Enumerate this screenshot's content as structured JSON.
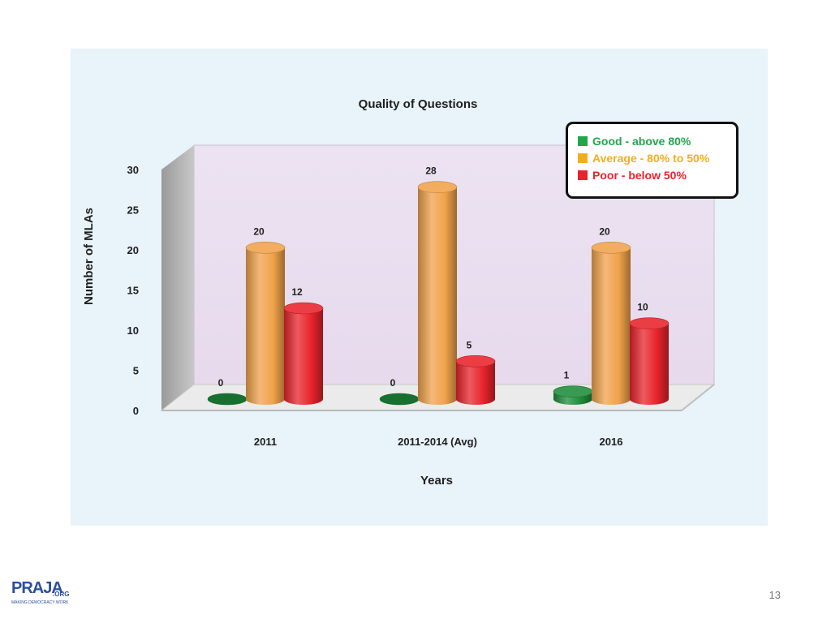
{
  "slide": {
    "page_number": "13",
    "logo": {
      "main": "PRAJA",
      "suffix": ".ORG",
      "tagline": "MAKING DEMOCRACY WORK"
    }
  },
  "colors": {
    "panel_background": "#e8f3fa",
    "plot_wall": "#eadff0",
    "good": "#1e8c3a",
    "average": "#f0a24a",
    "poor": "#e8232b"
  },
  "chart_data": {
    "type": "bar",
    "style": "3d-cylinder",
    "title": "Quality of Questions",
    "xlabel": "Years",
    "ylabel": "Number of MLAs",
    "ylim": [
      0,
      30
    ],
    "yticks": [
      0,
      5,
      10,
      15,
      20,
      25,
      30
    ],
    "categories": [
      "2011",
      "2011-2014 (Avg)",
      "2016"
    ],
    "series": [
      {
        "name": "Good - above 80%",
        "color": "#1e8c3a",
        "values": [
          0,
          0,
          1
        ]
      },
      {
        "name": "Average - 80% to 50%",
        "color": "#f0a24a",
        "values": [
          20,
          28,
          20
        ]
      },
      {
        "name": "Poor  - below 50%",
        "color": "#e8232b",
        "values": [
          12,
          5,
          10
        ]
      }
    ],
    "legend": {
      "placement": "top-right",
      "entries": [
        {
          "label": "Good - above 80%",
          "text_color": "#22a64a",
          "swatch": "#22a64a"
        },
        {
          "label": "Average - 80% to 50%",
          "text_color": "#f2ae1e",
          "swatch": "#f2ae1e"
        },
        {
          "label": "Poor  - below 50%",
          "text_color": "#e8232b",
          "swatch": "#e8232b"
        }
      ]
    },
    "grid": false,
    "data_labels": true
  }
}
